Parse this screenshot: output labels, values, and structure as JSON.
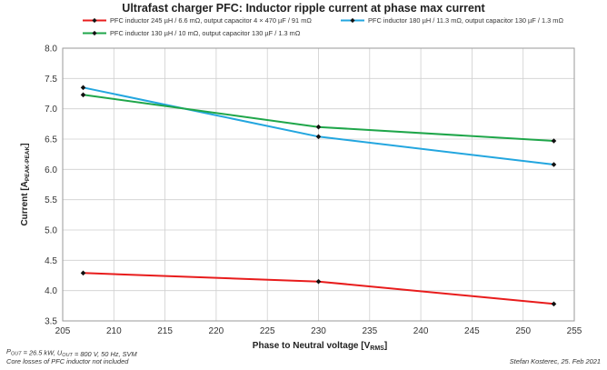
{
  "colors": {
    "series_red": "#e81c1c",
    "series_blue": "#23a6df",
    "series_green": "#1fa64a",
    "marker": "#111111",
    "grid": "#cfcfcf"
  },
  "footer": {
    "conditions": "P_OUT = 26.5 kW, U_OUT = 800 V, 50 Hz, SVM",
    "note": "Core losses of PFC inductor not included",
    "author": "Stefan Kosterec, 25. Feb 2021"
  },
  "chart_data": {
    "type": "line",
    "title": "Ultrafast charger PFC: Inductor ripple current at phase max current",
    "xlabel": "Phase to Neutral voltage [V_RMS]",
    "ylabel": "Current [A_PEAK-PEAK]",
    "xlim": [
      205,
      255
    ],
    "ylim": [
      3.5,
      8.0
    ],
    "xticks": [
      "205",
      "210",
      "215",
      "220",
      "225",
      "230",
      "235",
      "240",
      "245",
      "250",
      "255"
    ],
    "yticks": [
      "3.5",
      "4.0",
      "4.5",
      "5.0",
      "5.5",
      "6.0",
      "6.5",
      "7.0",
      "7.5",
      "8.0"
    ],
    "grid": true,
    "legend_position": "top",
    "series": [
      {
        "name": "PFC inductor 245 µH / 6.6 mΩ, output capacitor 4 × 470 µF / 91 mΩ",
        "color": "#e81c1c",
        "x": [
          207,
          230,
          253
        ],
        "values": [
          4.29,
          4.15,
          3.78
        ]
      },
      {
        "name": "PFC inductor 180 µH / 11.3 mΩ, output capacitor 130 µF / 1.3 mΩ",
        "color": "#23a6df",
        "x": [
          207,
          230,
          253
        ],
        "values": [
          7.35,
          6.54,
          6.08
        ]
      },
      {
        "name": "PFC inductor 130 µH / 10 mΩ, output capacitor 130 µF / 1.3 mΩ",
        "color": "#1fa64a",
        "x": [
          207,
          230,
          253
        ],
        "values": [
          7.23,
          6.7,
          6.47
        ]
      }
    ]
  }
}
